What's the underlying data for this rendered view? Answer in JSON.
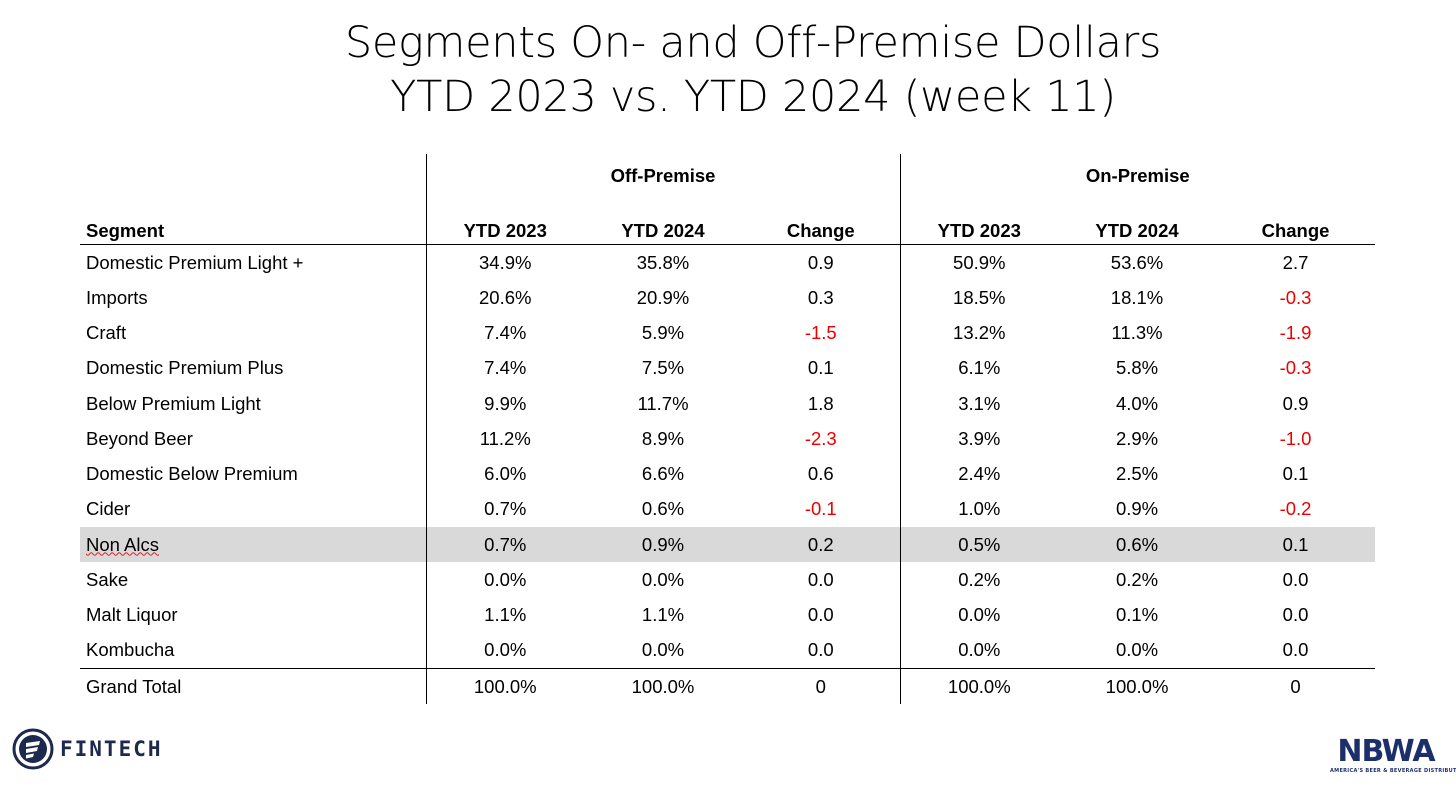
{
  "title": {
    "line1": "Segments On- and Off-Premise Dollars",
    "line2": "YTD 2023 vs. YTD 2024 (week 11)"
  },
  "table": {
    "group_headers": {
      "off_premise": "Off-Premise",
      "on_premise": "On-Premise"
    },
    "column_headers": {
      "segment": "Segment",
      "off_ytd2023": "YTD 2023",
      "off_ytd2024": "YTD 2024",
      "off_change": "Change",
      "on_ytd2023": "YTD 2023",
      "on_ytd2024": "YTD 2024",
      "on_change": "Change"
    },
    "rows": [
      {
        "segment": "Domestic Premium Light +",
        "off_ytd2023": "34.9%",
        "off_ytd2024": "35.8%",
        "off_change": "0.9",
        "on_ytd2023": "50.9%",
        "on_ytd2024": "53.6%",
        "on_change": "2.7"
      },
      {
        "segment": "Imports",
        "off_ytd2023": "20.6%",
        "off_ytd2024": "20.9%",
        "off_change": "0.3",
        "on_ytd2023": "18.5%",
        "on_ytd2024": "18.1%",
        "on_change": "-0.3"
      },
      {
        "segment": "Craft",
        "off_ytd2023": "7.4%",
        "off_ytd2024": "5.9%",
        "off_change": "-1.5",
        "on_ytd2023": "13.2%",
        "on_ytd2024": "11.3%",
        "on_change": "-1.9"
      },
      {
        "segment": "Domestic Premium Plus",
        "off_ytd2023": "7.4%",
        "off_ytd2024": "7.5%",
        "off_change": "0.1",
        "on_ytd2023": "6.1%",
        "on_ytd2024": "5.8%",
        "on_change": "-0.3"
      },
      {
        "segment": "Below Premium Light",
        "off_ytd2023": "9.9%",
        "off_ytd2024": "11.7%",
        "off_change": "1.8",
        "on_ytd2023": "3.1%",
        "on_ytd2024": "4.0%",
        "on_change": "0.9"
      },
      {
        "segment": "Beyond Beer",
        "off_ytd2023": "11.2%",
        "off_ytd2024": "8.9%",
        "off_change": "-2.3",
        "on_ytd2023": "3.9%",
        "on_ytd2024": "2.9%",
        "on_change": "-1.0"
      },
      {
        "segment": "Domestic Below Premium",
        "off_ytd2023": "6.0%",
        "off_ytd2024": "6.6%",
        "off_change": "0.6",
        "on_ytd2023": "2.4%",
        "on_ytd2024": "2.5%",
        "on_change": "0.1"
      },
      {
        "segment": "Cider",
        "off_ytd2023": "0.7%",
        "off_ytd2024": "0.6%",
        "off_change": "-0.1",
        "on_ytd2023": "1.0%",
        "on_ytd2024": "0.9%",
        "on_change": "-0.2"
      },
      {
        "segment": "Non Alcs",
        "off_ytd2023": "0.7%",
        "off_ytd2024": "0.9%",
        "off_change": "0.2",
        "on_ytd2023": "0.5%",
        "on_ytd2024": "0.6%",
        "on_change": "0.1"
      },
      {
        "segment": "Sake",
        "off_ytd2023": "0.0%",
        "off_ytd2024": "0.0%",
        "off_change": "0.0",
        "on_ytd2023": "0.2%",
        "on_ytd2024": "0.2%",
        "on_change": "0.0"
      },
      {
        "segment": "Malt Liquor",
        "off_ytd2023": "1.1%",
        "off_ytd2024": "1.1%",
        "off_change": "0.0",
        "on_ytd2023": "0.0%",
        "on_ytd2024": "0.1%",
        "on_change": "0.0"
      },
      {
        "segment": "Kombucha",
        "off_ytd2023": "0.0%",
        "off_ytd2024": "0.0%",
        "off_change": "0.0",
        "on_ytd2023": "0.0%",
        "on_ytd2024": "0.0%",
        "on_change": "0.0"
      }
    ],
    "total": {
      "segment": "Grand Total",
      "off_ytd2023": "100.0%",
      "off_ytd2024": "100.0%",
      "off_change": "0",
      "on_ytd2023": "100.0%",
      "on_ytd2024": "100.0%",
      "on_change": "0"
    }
  },
  "highlighted_row": "Non Alcs",
  "colors": {
    "negative": "#ee0000",
    "highlight": "#d9d9d9",
    "brand_navy": "#1c2f6b",
    "brand_red": "#c8102e"
  },
  "logos": {
    "fintech": {
      "icon": "fintech-logo-icon",
      "text": "FINTECH"
    },
    "nbwa": {
      "word": "NBWA",
      "tagline": "AMERICA'S BEER & BEVERAGE DISTRIBUTORS"
    }
  }
}
